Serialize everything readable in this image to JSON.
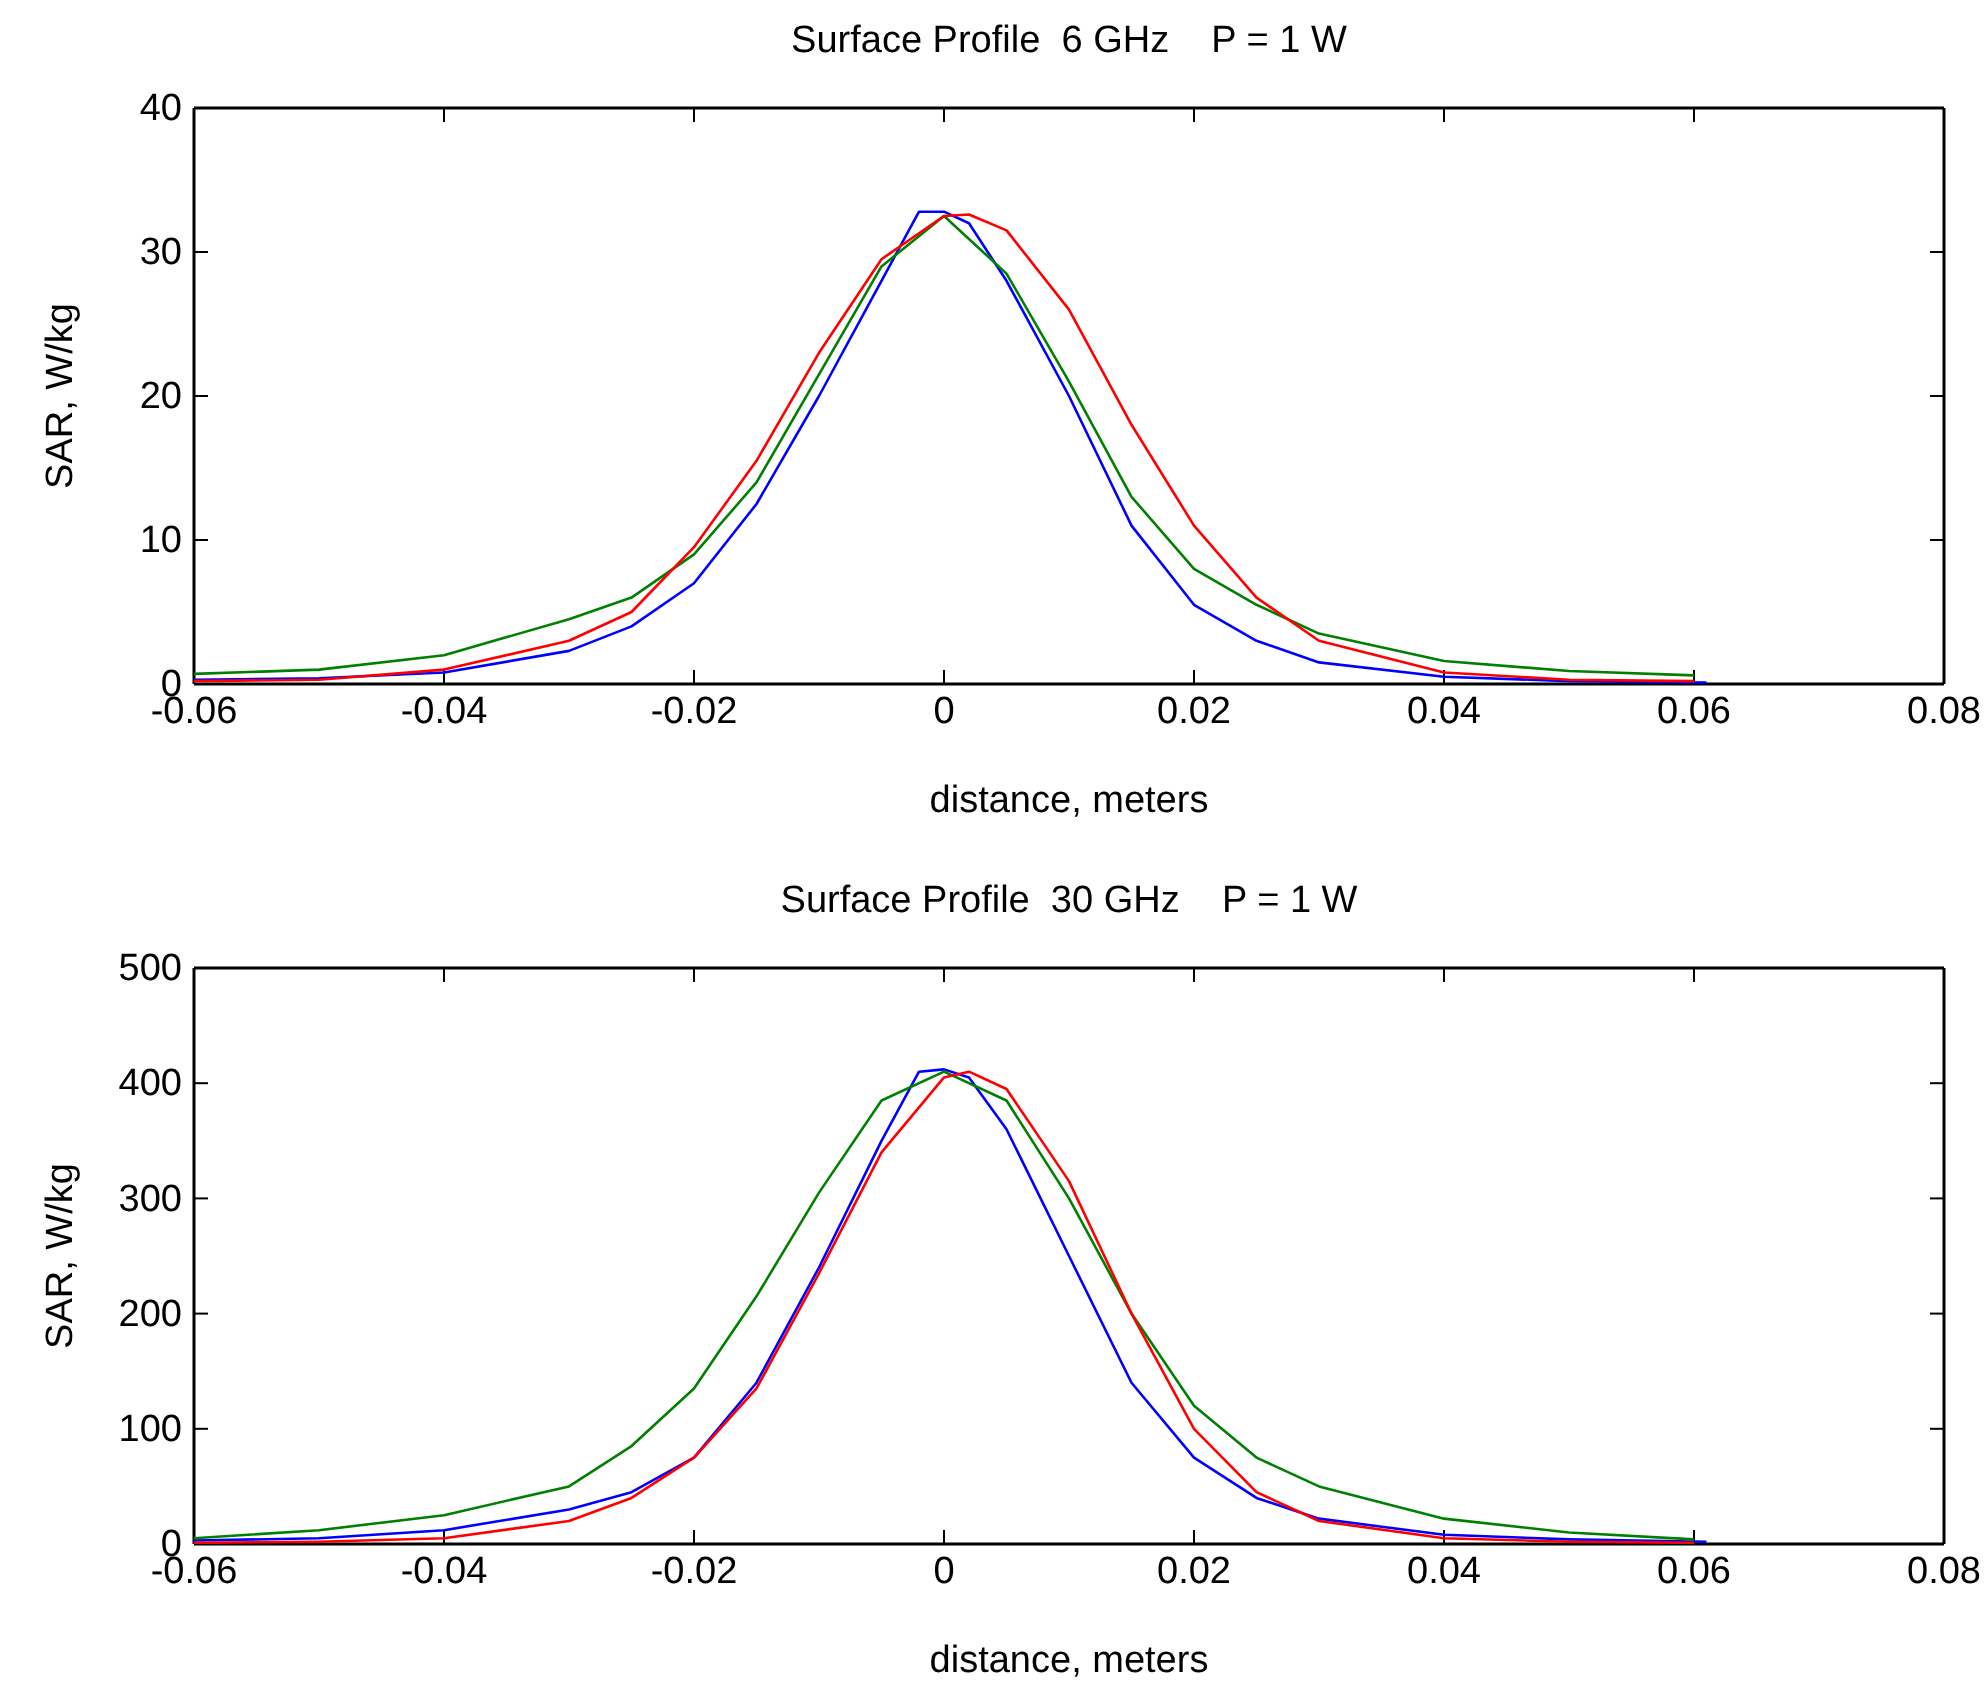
{
  "chart_data": [
    {
      "type": "line",
      "title": "Surface Profile  6 GHz    P = 1 W",
      "xlabel": "distance, meters",
      "ylabel": "SAR, W/kg",
      "xlim": [
        -0.06,
        0.08
      ],
      "xticks": [
        -0.06,
        -0.04,
        -0.02,
        0,
        0.02,
        0.04,
        0.06,
        0.08
      ],
      "ylim": [
        0,
        40
      ],
      "yticks": [
        0,
        10,
        20,
        30,
        40
      ],
      "grid": false,
      "series": [
        {
          "color": "#0000ff",
          "x": [
            -0.06,
            -0.05,
            -0.04,
            -0.03,
            -0.025,
            -0.02,
            -0.015,
            -0.01,
            -0.005,
            -0.002,
            0,
            0.002,
            0.005,
            0.01,
            0.015,
            0.02,
            0.025,
            0.03,
            0.04,
            0.05,
            0.061
          ],
          "values": [
            0.3,
            0.4,
            0.8,
            2.3,
            4,
            7,
            12.5,
            20,
            28,
            32.8,
            32.8,
            32,
            28,
            20,
            11,
            5.5,
            3,
            1.5,
            0.5,
            0.2,
            0.1
          ]
        },
        {
          "color": "#008000",
          "x": [
            -0.06,
            -0.05,
            -0.04,
            -0.03,
            -0.025,
            -0.02,
            -0.015,
            -0.01,
            -0.005,
            0,
            0.005,
            0.01,
            0.015,
            0.02,
            0.025,
            0.03,
            0.04,
            0.05,
            0.06
          ],
          "values": [
            0.7,
            1,
            2,
            4.5,
            6,
            9,
            14,
            21.5,
            29,
            32.5,
            28.5,
            21,
            13,
            8,
            5.5,
            3.5,
            1.6,
            0.9,
            0.6
          ]
        },
        {
          "color": "#ff0000",
          "x": [
            -0.06,
            -0.05,
            -0.04,
            -0.03,
            -0.025,
            -0.02,
            -0.015,
            -0.01,
            -0.005,
            0,
            0.002,
            0.005,
            0.01,
            0.015,
            0.02,
            0.025,
            0.03,
            0.04,
            0.05,
            0.06
          ],
          "values": [
            0.2,
            0.3,
            1,
            3,
            5,
            9.5,
            15.5,
            23,
            29.5,
            32.5,
            32.6,
            31.5,
            26,
            18,
            11,
            6,
            3,
            0.8,
            0.3,
            0.2
          ]
        }
      ]
    },
    {
      "type": "line",
      "title": "Surface Profile  30 GHz    P = 1 W",
      "xlabel": "distance, meters",
      "ylabel": "SAR, W/kg",
      "xlim": [
        -0.06,
        0.08
      ],
      "xticks": [
        -0.06,
        -0.04,
        -0.02,
        0,
        0.02,
        0.04,
        0.06,
        0.08
      ],
      "ylim": [
        0,
        500
      ],
      "yticks": [
        0,
        100,
        200,
        300,
        400,
        500
      ],
      "grid": false,
      "series": [
        {
          "color": "#0000ff",
          "x": [
            -0.06,
            -0.05,
            -0.04,
            -0.03,
            -0.025,
            -0.02,
            -0.015,
            -0.01,
            -0.005,
            -0.002,
            0,
            0.002,
            0.005,
            0.01,
            0.015,
            0.02,
            0.025,
            0.03,
            0.04,
            0.05,
            0.061
          ],
          "values": [
            3,
            5,
            12,
            30,
            45,
            75,
            140,
            240,
            350,
            410,
            412,
            405,
            360,
            250,
            140,
            75,
            40,
            22,
            8,
            4,
            2
          ]
        },
        {
          "color": "#008000",
          "x": [
            -0.06,
            -0.05,
            -0.04,
            -0.03,
            -0.025,
            -0.02,
            -0.015,
            -0.01,
            -0.005,
            0,
            0.005,
            0.01,
            0.015,
            0.02,
            0.025,
            0.03,
            0.04,
            0.05,
            0.06
          ],
          "values": [
            5,
            12,
            25,
            50,
            85,
            135,
            215,
            305,
            385,
            410,
            385,
            300,
            200,
            120,
            75,
            50,
            22,
            10,
            4
          ]
        },
        {
          "color": "#ff0000",
          "x": [
            -0.06,
            -0.05,
            -0.04,
            -0.03,
            -0.025,
            -0.02,
            -0.015,
            -0.01,
            -0.005,
            0,
            0.002,
            0.005,
            0.01,
            0.015,
            0.02,
            0.025,
            0.03,
            0.04,
            0.05,
            0.06
          ],
          "values": [
            1,
            2,
            5,
            20,
            40,
            75,
            135,
            235,
            340,
            405,
            410,
            395,
            315,
            200,
            100,
            45,
            20,
            5,
            2,
            1
          ]
        }
      ]
    }
  ]
}
